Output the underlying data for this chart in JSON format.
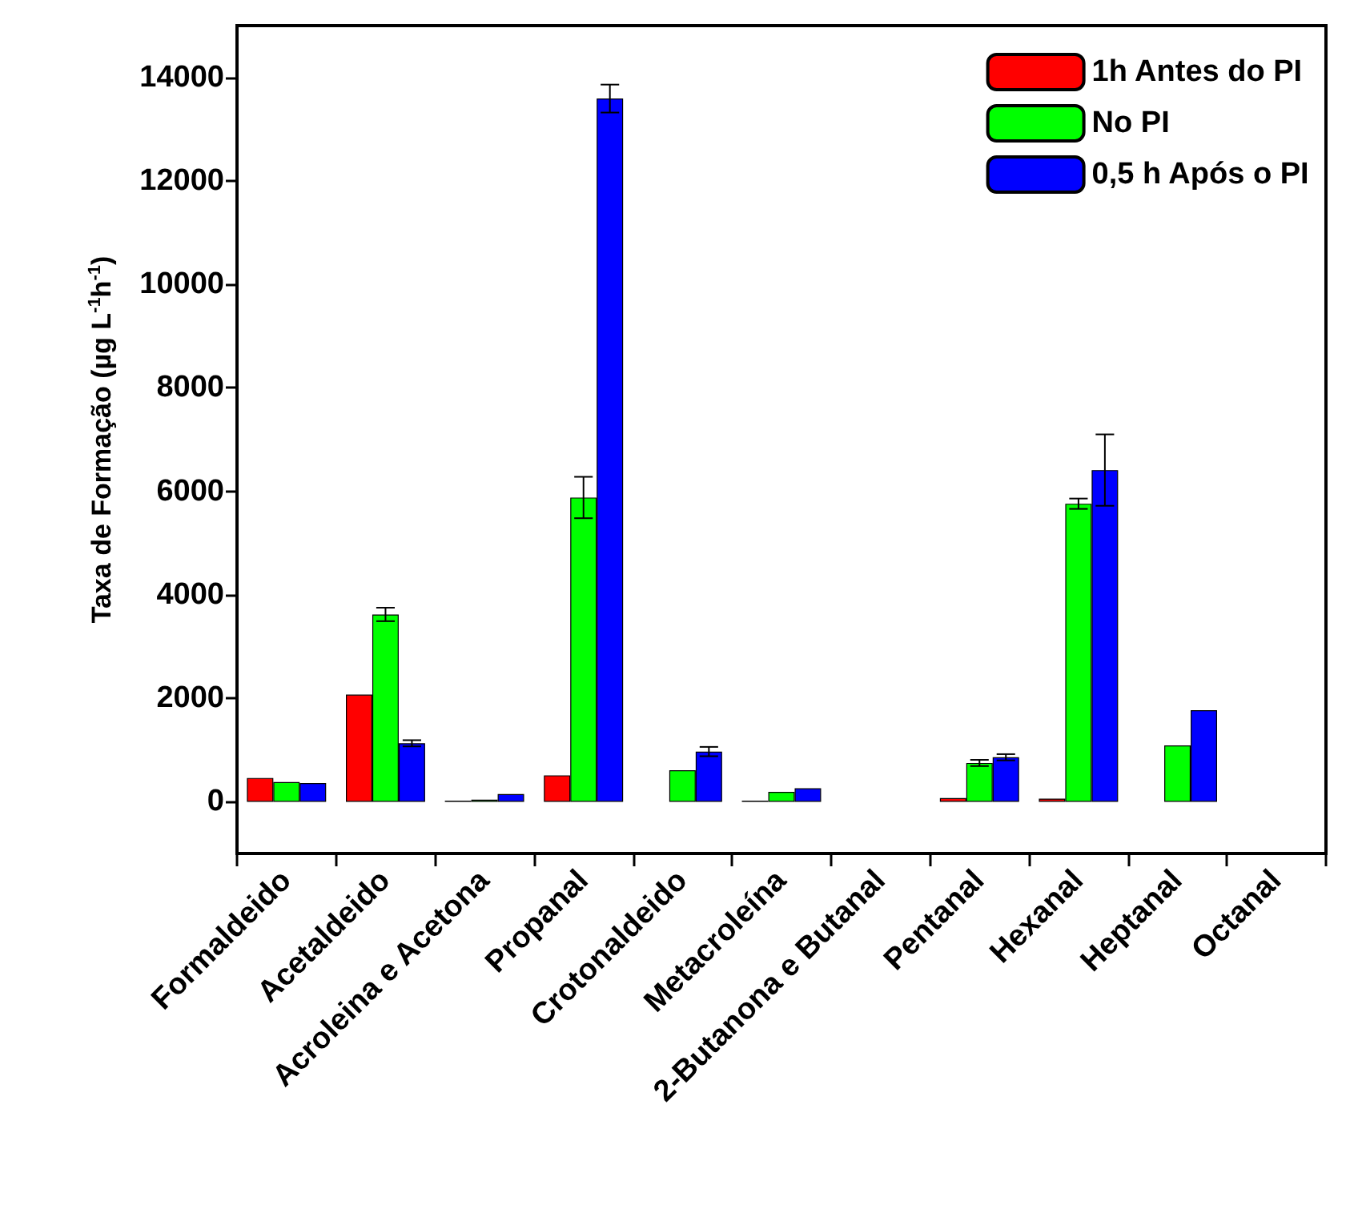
{
  "chart_data": {
    "type": "bar",
    "ylabel": "Taxa de Formação (µg L$^{-1}$h$^{-1}$)",
    "categories": [
      "Formaldeido",
      "Acetaldeido",
      "Acroleina e Acetona",
      "Propanal",
      "Crotonaldeido",
      "Metacroleína",
      "2-Butanona e Butanal",
      "Pentanal",
      "Hexanal",
      "Heptanal",
      "Octanal"
    ],
    "series": [
      {
        "name": "1h Antes do PI",
        "color": "#ff0000",
        "values": [
          460,
          2070,
          20,
          510,
          null,
          20,
          null,
          70,
          60,
          null,
          null
        ],
        "errors": [
          null,
          null,
          null,
          null,
          null,
          null,
          null,
          null,
          null,
          null,
          null
        ]
      },
      {
        "name": "No PI",
        "color": "#00ff00",
        "values": [
          380,
          3620,
          40,
          5880,
          610,
          190,
          null,
          750,
          5760,
          1090,
          null
        ],
        "errors": [
          null,
          130,
          null,
          400,
          null,
          null,
          null,
          60,
          100,
          null,
          null
        ]
      },
      {
        "name": "0,5 h Após o PI",
        "color": "#0000ff",
        "values": [
          360,
          1130,
          150,
          13590,
          970,
          260,
          null,
          860,
          6410,
          1770,
          null
        ],
        "errors": [
          null,
          60,
          null,
          270,
          90,
          null,
          null,
          60,
          690,
          null,
          null
        ]
      }
    ],
    "ylim": [
      -1000,
      15000
    ],
    "yticks": [
      0,
      2000,
      4000,
      6000,
      8000,
      10000,
      12000,
      14000
    ],
    "legend": "top right",
    "grid": false
  }
}
